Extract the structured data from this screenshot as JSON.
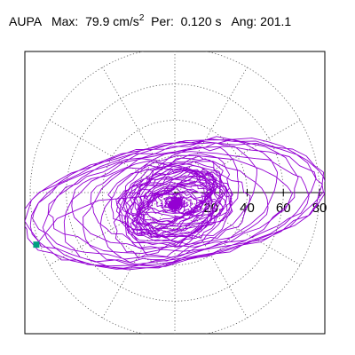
{
  "header": {
    "station": "AUPA",
    "max_label": "Max:",
    "max_value": "79.9 cm/s",
    "max_exponent": "2",
    "per_label": "Per:",
    "per_value": "0.120 s",
    "ang_label": "Ang:",
    "ang_value": "201.1"
  },
  "chart_data": {
    "type": "polar-orbit",
    "title": "AUPA Max: 79.9 cm/s2 Per: 0.120 s Ang: 201.1",
    "radial_ticks": [
      "20",
      "40",
      "60",
      "80"
    ],
    "radial_tick_values": [
      20,
      40,
      60,
      80
    ],
    "rmax": 80,
    "angular_gridlines_deg": [
      0,
      30,
      60,
      90,
      120,
      150,
      180,
      210,
      240,
      270,
      300,
      330
    ],
    "grid": "dotted",
    "trace_color": "#9400d3",
    "end_marker_color": "#00a080",
    "peak": {
      "magnitude": 79.9,
      "angle_deg": 201.1,
      "period_s": 0.12
    },
    "end_point": {
      "x": -76.6,
      "y": -28.8
    }
  }
}
